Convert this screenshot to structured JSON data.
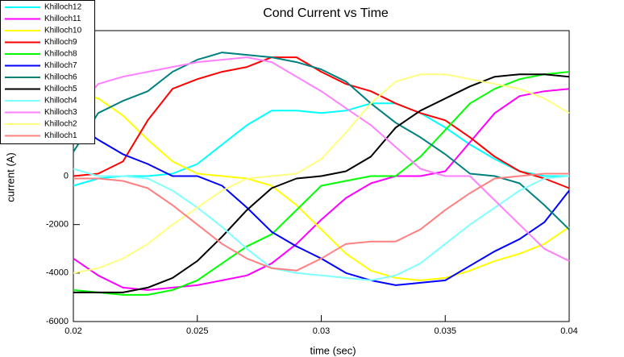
{
  "chart_data": {
    "type": "line",
    "title": "Cond Current vs Time",
    "x_label": "time (sec)",
    "y_label": "current (A)",
    "x": [
      0.02,
      0.021,
      0.022,
      0.023,
      0.024,
      0.025,
      0.026,
      0.027,
      0.028,
      0.029,
      0.03,
      0.031,
      0.032,
      0.033,
      0.034,
      0.035,
      0.036,
      0.037,
      0.038,
      0.039,
      0.04
    ],
    "xlim": [
      0.02,
      0.04
    ],
    "xticks": [
      0.02,
      0.025,
      0.03,
      0.035,
      0.04
    ],
    "ylim": [
      -6000,
      6000
    ],
    "yticks": [
      -6000,
      -4000,
      -2000,
      0
    ],
    "legend": "top-left",
    "series": [
      {
        "name": "Khilloch12",
        "color": "#00ffff",
        "values": [
          -400,
          -100,
          0,
          0,
          100,
          500,
          1300,
          2100,
          2700,
          2700,
          2600,
          2700,
          3000,
          3000,
          2600,
          2000,
          1300,
          700,
          200,
          0,
          0
        ]
      },
      {
        "name": "Khilloch11",
        "color": "#ff00ff",
        "values": [
          -3400,
          -4100,
          -4600,
          -4700,
          -4600,
          -4500,
          -4300,
          -4100,
          -3600,
          -2800,
          -1800,
          -900,
          -300,
          0,
          0,
          200,
          1400,
          2600,
          3300,
          3500,
          3600
        ]
      },
      {
        "name": "Khilloch10",
        "color": "#ffff00",
        "values": [
          3500,
          3200,
          2500,
          1500,
          600,
          100,
          0,
          -100,
          -400,
          -1200,
          -2200,
          -3200,
          -3900,
          -4200,
          -4300,
          -4200,
          -3900,
          -3500,
          -3200,
          -2800,
          -2100
        ]
      },
      {
        "name": "Khilloch9",
        "color": "#ff0000",
        "values": [
          0,
          100,
          600,
          2300,
          3600,
          4000,
          4300,
          4500,
          4900,
          4900,
          4300,
          3800,
          3500,
          3000,
          2600,
          2300,
          1600,
          800,
          200,
          -100,
          -500
        ]
      },
      {
        "name": "Khilloch8",
        "color": "#00ff00",
        "values": [
          -4700,
          -4800,
          -4900,
          -4900,
          -4700,
          -4300,
          -3600,
          -2900,
          -2400,
          -1400,
          -400,
          -200,
          0,
          0,
          800,
          1900,
          3000,
          3600,
          4000,
          4200,
          4300
        ]
      },
      {
        "name": "Khilloch7",
        "color": "#0000ff",
        "values": [
          2200,
          1500,
          900,
          500,
          0,
          0,
          -400,
          -1300,
          -2300,
          -2900,
          -3400,
          -4000,
          -4300,
          -4500,
          -4400,
          -4300,
          -3700,
          -3100,
          -2600,
          -1900,
          -600
        ]
      },
      {
        "name": "Khilloch6",
        "color": "#008080",
        "values": [
          1000,
          2600,
          3100,
          3500,
          4300,
          4800,
          5100,
          5000,
          4900,
          4700,
          4400,
          3900,
          3000,
          2200,
          1600,
          900,
          100,
          0,
          -300,
          -1200,
          -2200
        ]
      },
      {
        "name": "Khilloch5",
        "color": "#000000",
        "values": [
          -4800,
          -4800,
          -4800,
          -4600,
          -4200,
          -3500,
          -2500,
          -1400,
          -500,
          -100,
          0,
          200,
          800,
          2000,
          2700,
          3200,
          3700,
          4100,
          4200,
          4200,
          4100
        ]
      },
      {
        "name": "Khilloch4",
        "color": "#80ffff",
        "values": [
          300,
          0,
          0,
          -100,
          -600,
          -1300,
          -2100,
          -3000,
          -3800,
          -4000,
          -4100,
          -4200,
          -4300,
          -4100,
          -3600,
          -2800,
          -2000,
          -1300,
          -600,
          -100,
          0
        ]
      },
      {
        "name": "Khilloch3",
        "color": "#ff80ff",
        "values": [
          2600,
          3800,
          4100,
          4300,
          4500,
          4700,
          4800,
          4900,
          4700,
          4100,
          3500,
          2800,
          2100,
          1200,
          300,
          0,
          0,
          -1000,
          -2000,
          -3000,
          -3500
        ]
      },
      {
        "name": "Khilloch2",
        "color": "#ffff80",
        "values": [
          -4000,
          -3800,
          -3400,
          -2800,
          -2000,
          -1300,
          -600,
          -100,
          0,
          100,
          700,
          1800,
          3000,
          3900,
          4200,
          4200,
          4000,
          3800,
          3600,
          3200,
          2600
        ]
      },
      {
        "name": "Khilloch1",
        "color": "#ff8080",
        "values": [
          -100,
          -100,
          -200,
          -500,
          -1200,
          -2000,
          -2800,
          -3400,
          -3800,
          -3900,
          -3400,
          -2800,
          -2700,
          -2700,
          -2200,
          -1400,
          -700,
          -100,
          0,
          100,
          100
        ]
      }
    ]
  }
}
